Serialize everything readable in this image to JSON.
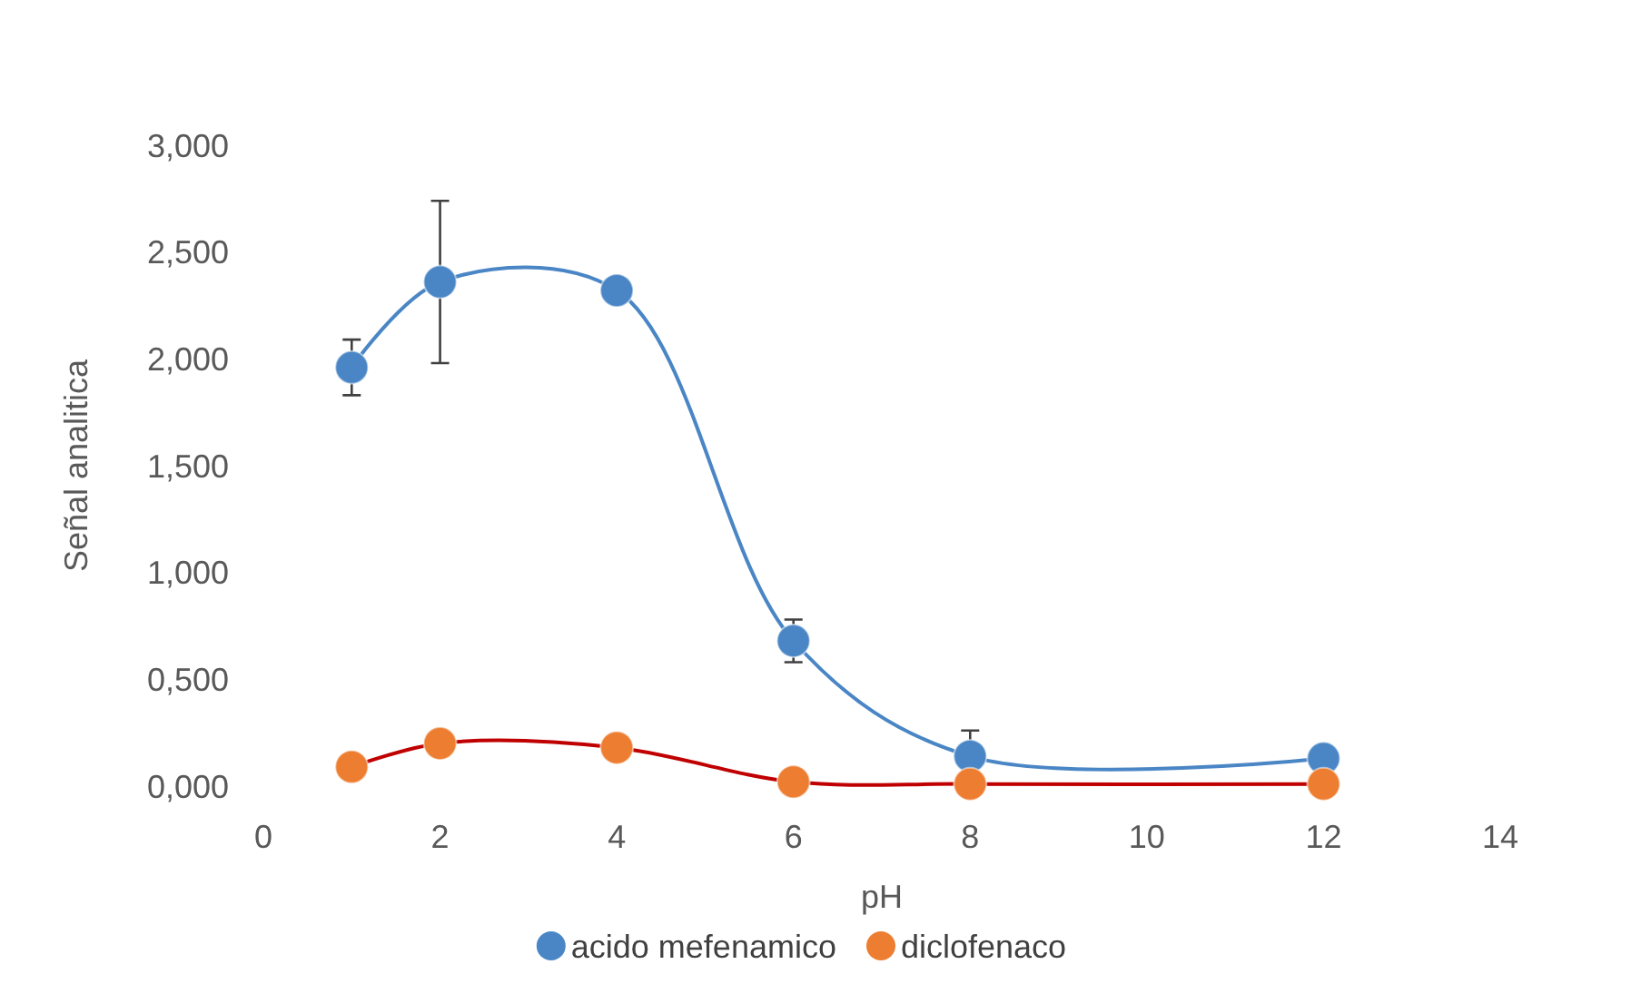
{
  "chart_data": {
    "type": "line",
    "xlabel": "pH",
    "ylabel": "Señal analitica",
    "xlim": [
      0,
      14
    ],
    "xticks": [
      0,
      2,
      4,
      6,
      8,
      10,
      12,
      14
    ],
    "ylim": [
      0,
      3
    ],
    "yticks": [
      {
        "value": 0,
        "label": "0,000"
      },
      {
        "value": 0.5,
        "label": "0,500"
      },
      {
        "value": 1,
        "label": "1,000"
      },
      {
        "value": 1.5,
        "label": "1,500"
      },
      {
        "value": 2,
        "label": "2,000"
      },
      {
        "value": 2.5,
        "label": "2,500"
      },
      {
        "value": 3,
        "label": "3,000"
      }
    ],
    "grid": false,
    "legend": "bottom",
    "series": [
      {
        "type": "line",
        "name": "acido mefenamico",
        "color": "#4a86c5",
        "marker": "circle",
        "x": [
          1,
          2,
          4,
          6,
          8,
          12
        ],
        "values": [
          1.96,
          2.36,
          2.32,
          0.68,
          0.14,
          0.13
        ],
        "errors": [
          0.13,
          0.38,
          null,
          0.1,
          0.12,
          null
        ]
      },
      {
        "type": "scatter",
        "name": "diclofenaco",
        "color": "#ed7d31",
        "marker": "circle",
        "x": [
          1,
          2,
          4,
          6,
          8,
          12
        ],
        "values": [
          0.09,
          0.2,
          0.18,
          0.02,
          0.01,
          0.01
        ]
      },
      {
        "type": "line",
        "color": "#c00000",
        "marker": "none",
        "x": [
          1,
          2,
          4,
          6,
          8,
          12
        ],
        "values": [
          0.09,
          0.2,
          0.18,
          0.02,
          0.01,
          0.01
        ]
      }
    ]
  }
}
